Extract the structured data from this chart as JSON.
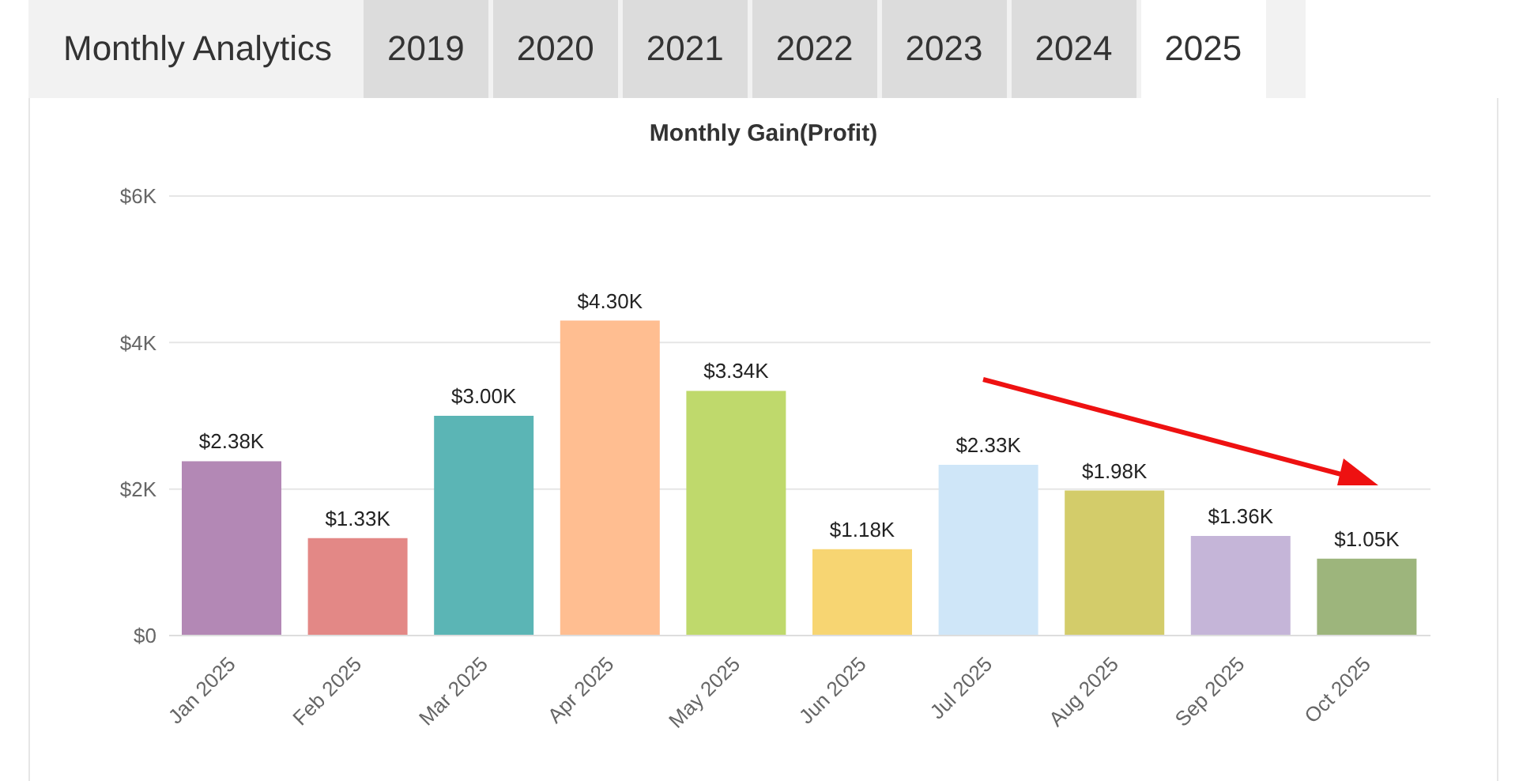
{
  "chart_data": {
    "type": "bar",
    "title": "Monthly Gain(Profit)",
    "annotations": [
      "Monthly Analytics",
      "2019",
      "2020",
      "2021",
      "2022",
      "2023",
      "2024",
      "2025"
    ],
    "categories": [
      "Jan 2025",
      "Feb 2025",
      "Mar 2025",
      "Apr 2025",
      "May 2025",
      "Jun 2025",
      "Jul 2025",
      "Aug 2025",
      "Sep 2025",
      "Oct 2025"
    ],
    "values": [
      2380,
      1330,
      3000,
      4300,
      3340,
      1180,
      2330,
      1980,
      1360,
      1050
    ],
    "value_labels": [
      "$2.38K",
      "$1.33K",
      "$3.00K",
      "$4.30K",
      "$3.34K",
      "$1.18K",
      "$2.33K",
      "$1.98K",
      "$1.36K",
      "$1.05K"
    ],
    "colors": [
      "#b388b5",
      "#e38886",
      "#5bb5b5",
      "#ffbe91",
      "#bfd96c",
      "#f7d572",
      "#cfe6f8",
      "#d3cc6a",
      "#c5b5d8",
      "#9db57c"
    ],
    "ylim": [
      0,
      6000
    ],
    "yticks": [
      {
        "value": 0,
        "label": "$0"
      },
      {
        "value": 2000,
        "label": "$2K"
      },
      {
        "value": 4000,
        "label": "$4K"
      },
      {
        "value": 6000,
        "label": "$6K"
      }
    ],
    "grid": "y"
  }
}
